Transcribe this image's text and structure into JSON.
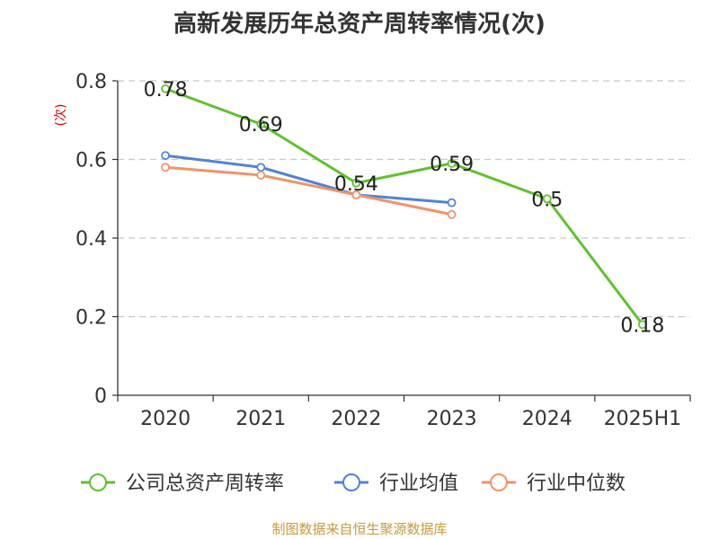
{
  "chart_data": {
    "type": "line",
    "title": "高新发展历年总资产周转率情况(次)",
    "ylabel": "(次)",
    "xlabel": "",
    "categories": [
      "2020",
      "2021",
      "2022",
      "2023",
      "2024",
      "2025H1"
    ],
    "ylim": [
      0,
      0.8
    ],
    "yticks": [
      0,
      0.2,
      0.4,
      0.6,
      0.8
    ],
    "ytick_labels": [
      "0",
      "0.2",
      "0.4",
      "0.6",
      "0.8"
    ],
    "grid": "horizontal dashed",
    "legend_position": "bottom",
    "series": [
      {
        "name": "公司总资产周转率",
        "color": "#5cc429",
        "values": [
          0.78,
          0.69,
          0.54,
          0.59,
          0.5,
          0.18
        ],
        "labels": [
          "0.78",
          "0.69",
          "0.54",
          "0.59",
          "0.5",
          "0.18"
        ]
      },
      {
        "name": "行业均值",
        "color": "#4c84dc",
        "values": [
          0.61,
          0.58,
          0.51,
          0.49,
          null,
          null
        ]
      },
      {
        "name": "行业中位数",
        "color": "#f49364",
        "values": [
          0.58,
          0.56,
          0.51,
          0.46,
          null,
          null
        ]
      }
    ]
  },
  "source_note": "制图数据来自恒生聚源数据库",
  "colors": {
    "axis": "#333333",
    "grid": "#c8c8c8",
    "ylabel": "#d40000"
  }
}
